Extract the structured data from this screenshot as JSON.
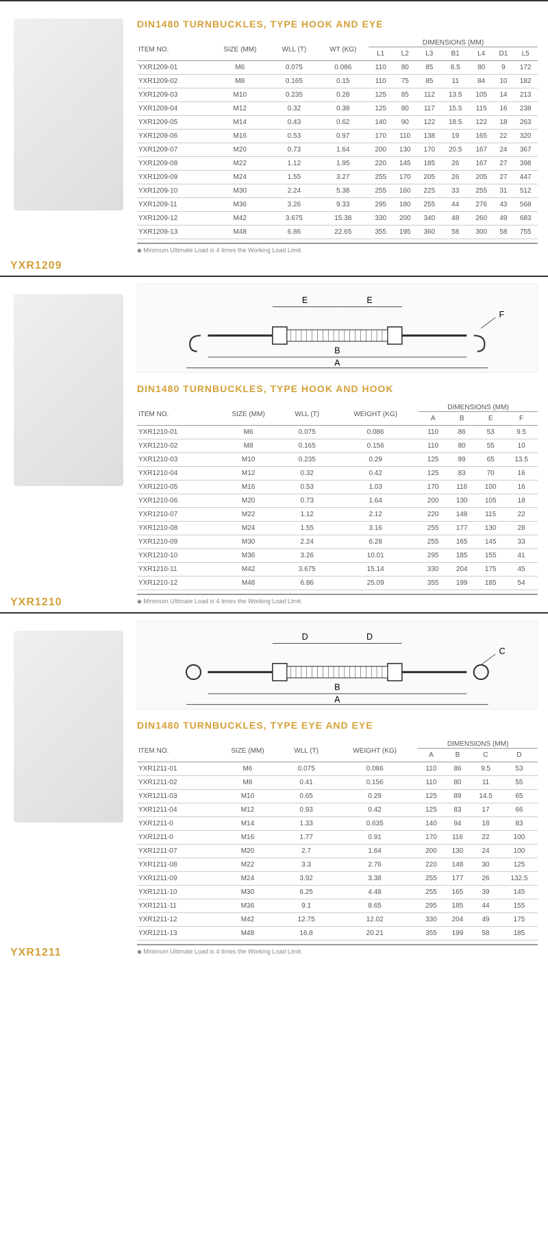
{
  "colors": {
    "accent": "#d4a037",
    "text": "#555",
    "border_light": "#ccc",
    "border_dark": "#999"
  },
  "typography": {
    "title_size": 14,
    "body_size": 10,
    "footnote_size": 9
  },
  "footnote": "Minimum Ultimate Load is 4 times the Working Load Limit.",
  "sections": [
    {
      "code": "YXR1209",
      "title": "DIN1480 TURNBUCKLES, TYPE HOOK AND EYE",
      "diagram_top": false,
      "headers_main": [
        "ITEM NO.",
        "SIZE (MM)",
        "WLL (T)",
        "WT (KG)"
      ],
      "dim_label": "DIMENSIONS (MM)",
      "headers_dim": [
        "L1",
        "L2",
        "L3",
        "B1",
        "L4",
        "D1",
        "L5"
      ],
      "rows": [
        [
          "YXR1209-01",
          "M6",
          "0.075",
          "0.086",
          "110",
          "80",
          "85",
          "8.5",
          "80",
          "9",
          "172"
        ],
        [
          "YXR1209-02",
          "M8",
          "0.165",
          "0.15",
          "110",
          "75",
          "85",
          "11",
          "84",
          "10",
          "182"
        ],
        [
          "YXR1209-03",
          "M10",
          "0.235",
          "0.28",
          "125",
          "85",
          "112",
          "13.5",
          "105",
          "14",
          "213"
        ],
        [
          "YXR1209-04",
          "M12",
          "0.32",
          "0.38",
          "125",
          "80",
          "117",
          "15.5",
          "115",
          "16",
          "238"
        ],
        [
          "YXR1209-05",
          "M14",
          "0.43",
          "0.62",
          "140",
          "90",
          "122",
          "18.5",
          "122",
          "18",
          "263"
        ],
        [
          "YXR1209-06",
          "M16",
          "0.53",
          "0.97",
          "170",
          "110",
          "138",
          "19",
          "165",
          "22",
          "320"
        ],
        [
          "YXR1209-07",
          "M20",
          "0.73",
          "1.64",
          "200",
          "130",
          "170",
          "20.5",
          "167",
          "24",
          "367"
        ],
        [
          "YXR1209-08",
          "M22",
          "1.12",
          "1.95",
          "220",
          "145",
          "185",
          "26",
          "167",
          "27",
          "398"
        ],
        [
          "YXR1209-09",
          "M24",
          "1.55",
          "3.27",
          "255",
          "170",
          "205",
          "26",
          "205",
          "27",
          "447"
        ],
        [
          "YXR1209-10",
          "M30",
          "2.24",
          "5.38",
          "255",
          "160",
          "225",
          "33",
          "255",
          "31",
          "512"
        ],
        [
          "YXR1209-11",
          "M36",
          "3.26",
          "9.33",
          "295",
          "180",
          "255",
          "44",
          "276",
          "43",
          "568"
        ],
        [
          "YXR1209-12",
          "M42",
          "3.675",
          "15.38",
          "330",
          "200",
          "340",
          "48",
          "260",
          "49",
          "683"
        ],
        [
          "YXR1209-13",
          "M48",
          "6.86",
          "22.65",
          "355",
          "195",
          "360",
          "58",
          "300",
          "58",
          "755"
        ]
      ]
    },
    {
      "code": "YXR1210",
      "title": "DIN1480 TURNBUCKLES, TYPE HOOK AND HOOK",
      "diagram_top": true,
      "diagram_labels": [
        "E",
        "E",
        "B",
        "A",
        "F"
      ],
      "headers_main": [
        "ITEM NO.",
        "SIZE (MM)",
        "WLL (T)",
        "WEIGHT (KG)"
      ],
      "dim_label": "DIMENSIONS (MM)",
      "headers_dim": [
        "A",
        "B",
        "E",
        "F"
      ],
      "rows": [
        [
          "YXR1210-01",
          "M6",
          "0.075",
          "0.086",
          "110",
          "86",
          "53",
          "9.5"
        ],
        [
          "YXR1210-02",
          "M8",
          "0.165",
          "0.156",
          "110",
          "80",
          "55",
          "10"
        ],
        [
          "YXR1210-03",
          "M10",
          "0.235",
          "0.29",
          "125",
          "89",
          "65",
          "13.5"
        ],
        [
          "YXR1210-04",
          "M12",
          "0.32",
          "0.42",
          "125",
          "83",
          "70",
          "16"
        ],
        [
          "YXR1210-05",
          "M16",
          "0.53",
          "1.03",
          "170",
          "116",
          "100",
          "16"
        ],
        [
          "YXR1210-06",
          "M20",
          "0.73",
          "1.64",
          "200",
          "130",
          "105",
          "18"
        ],
        [
          "YXR1210-07",
          "M22",
          "1.12",
          "2.12",
          "220",
          "148",
          "115",
          "22"
        ],
        [
          "YXR1210-08",
          "M24",
          "1.55",
          "3.16",
          "255",
          "177",
          "130",
          "28"
        ],
        [
          "YXR1210-09",
          "M30",
          "2.24",
          "6.28",
          "255",
          "165",
          "145",
          "33"
        ],
        [
          "YXR1210-10",
          "M36",
          "3.26",
          "10.01",
          "295",
          "185",
          "155",
          "41"
        ],
        [
          "YXR1210-11",
          "M42",
          "3.675",
          "15.14",
          "330",
          "204",
          "175",
          "45"
        ],
        [
          "YXR1210-12",
          "M48",
          "6.86",
          "25.09",
          "355",
          "199",
          "185",
          "54"
        ]
      ]
    },
    {
      "code": "YXR1211",
      "title": "DIN1480 TURNBUCKLES, TYPE EYE AND EYE",
      "diagram_top": true,
      "diagram_labels": [
        "D",
        "D",
        "B",
        "A",
        "C"
      ],
      "headers_main": [
        "ITEM NO.",
        "SIZE (MM)",
        "WLL (T)",
        "WEIGHT (KG)"
      ],
      "dim_label": "DIMENSIONS (MM)",
      "headers_dim": [
        "A",
        "B",
        "C",
        "D"
      ],
      "rows": [
        [
          "YXR1211-01",
          "M6",
          "0.075",
          "0.086",
          "110",
          "86",
          "9.5",
          "53"
        ],
        [
          "YXR1211-02",
          "M8",
          "0.41",
          "0.156",
          "110",
          "80",
          "11",
          "55"
        ],
        [
          "YXR1211-03",
          "M10",
          "0.65",
          "0.29",
          "125",
          "89",
          "14.5",
          "65"
        ],
        [
          "YXR1211-04",
          "M12",
          "0.93",
          "0.42",
          "125",
          "83",
          "17",
          "66"
        ],
        [
          "YXR1211-0",
          "M14",
          "1.33",
          "0.635",
          "140",
          "94",
          "18",
          "83"
        ],
        [
          "YXR1211-0",
          "M16",
          "1.77",
          "0.91",
          "170",
          "116",
          "22",
          "100"
        ],
        [
          "YXR1211-07",
          "M20",
          "2.7",
          "1.64",
          "200",
          "130",
          "24",
          "100"
        ],
        [
          "YXR1211-08",
          "M22",
          "3.3",
          "2.76",
          "220",
          "148",
          "30",
          "125"
        ],
        [
          "YXR1211-09",
          "M24",
          "3.92",
          "3.38",
          "255",
          "177",
          "26",
          "132.5"
        ],
        [
          "YXR1211-10",
          "M30",
          "6.25",
          "4.48",
          "255",
          "165",
          "39",
          "145"
        ],
        [
          "YXR1211-11",
          "M36",
          "9.1",
          "8.65",
          "295",
          "185",
          "44",
          "155"
        ],
        [
          "YXR1211-12",
          "M42",
          "12.75",
          "12.02",
          "330",
          "204",
          "49",
          "175"
        ],
        [
          "YXR1211-13",
          "M48",
          "16.8",
          "20.21",
          "355",
          "199",
          "58",
          "185"
        ]
      ]
    }
  ]
}
